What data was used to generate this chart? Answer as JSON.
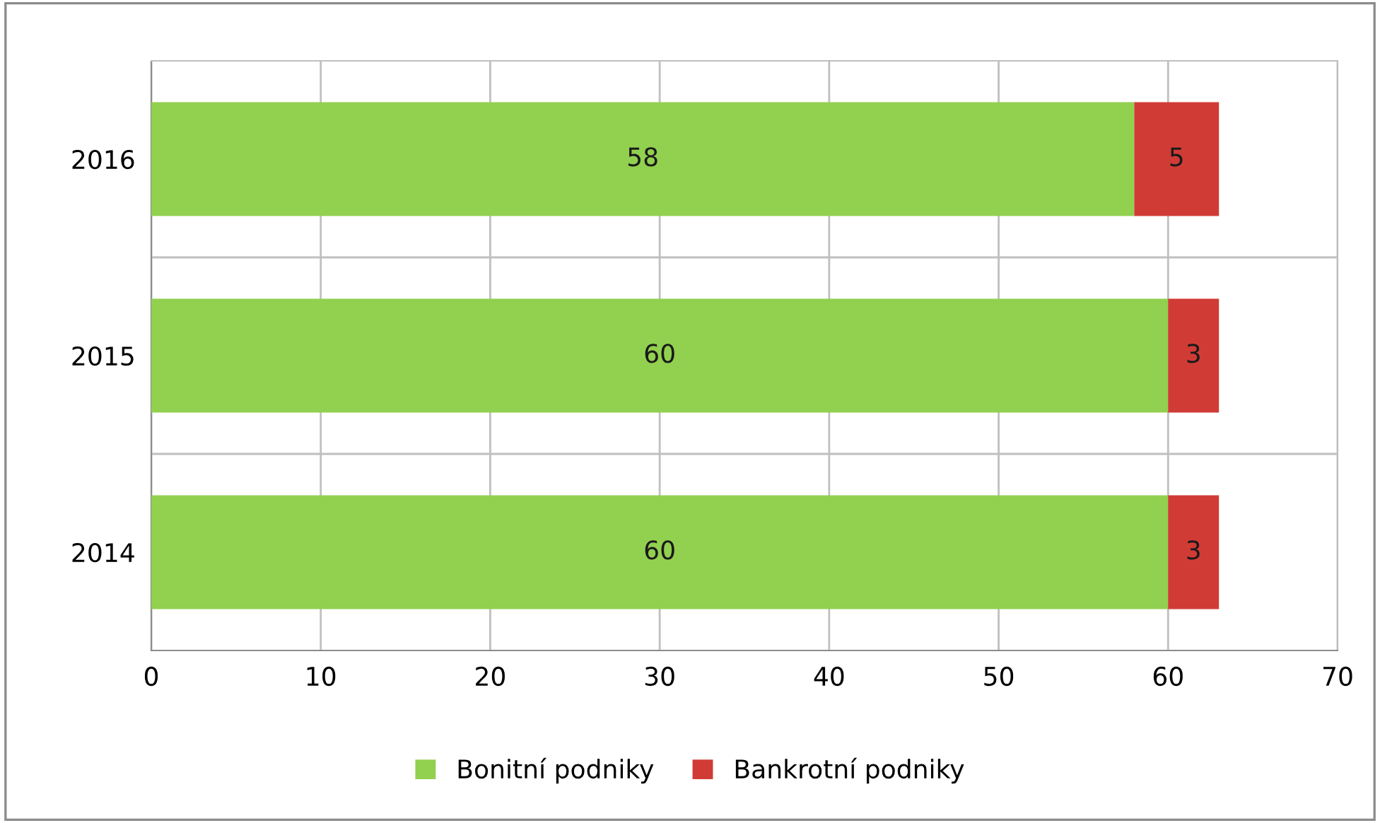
{
  "chart_data": {
    "type": "bar",
    "orientation": "horizontal",
    "stacked": true,
    "categories": [
      "2016",
      "2015",
      "2014"
    ],
    "series": [
      {
        "name": "Bonitní podniky",
        "color": "#92d050",
        "values": [
          58,
          60,
          60
        ]
      },
      {
        "name": "Bankrotní podniky",
        "color": "#d03c35",
        "values": [
          5,
          3,
          3
        ]
      }
    ],
    "xlim": [
      0,
      70
    ],
    "xticks": [
      0,
      10,
      20,
      30,
      40,
      50,
      60,
      70
    ],
    "grid": true,
    "legend": "bottom",
    "data_labels": true
  }
}
